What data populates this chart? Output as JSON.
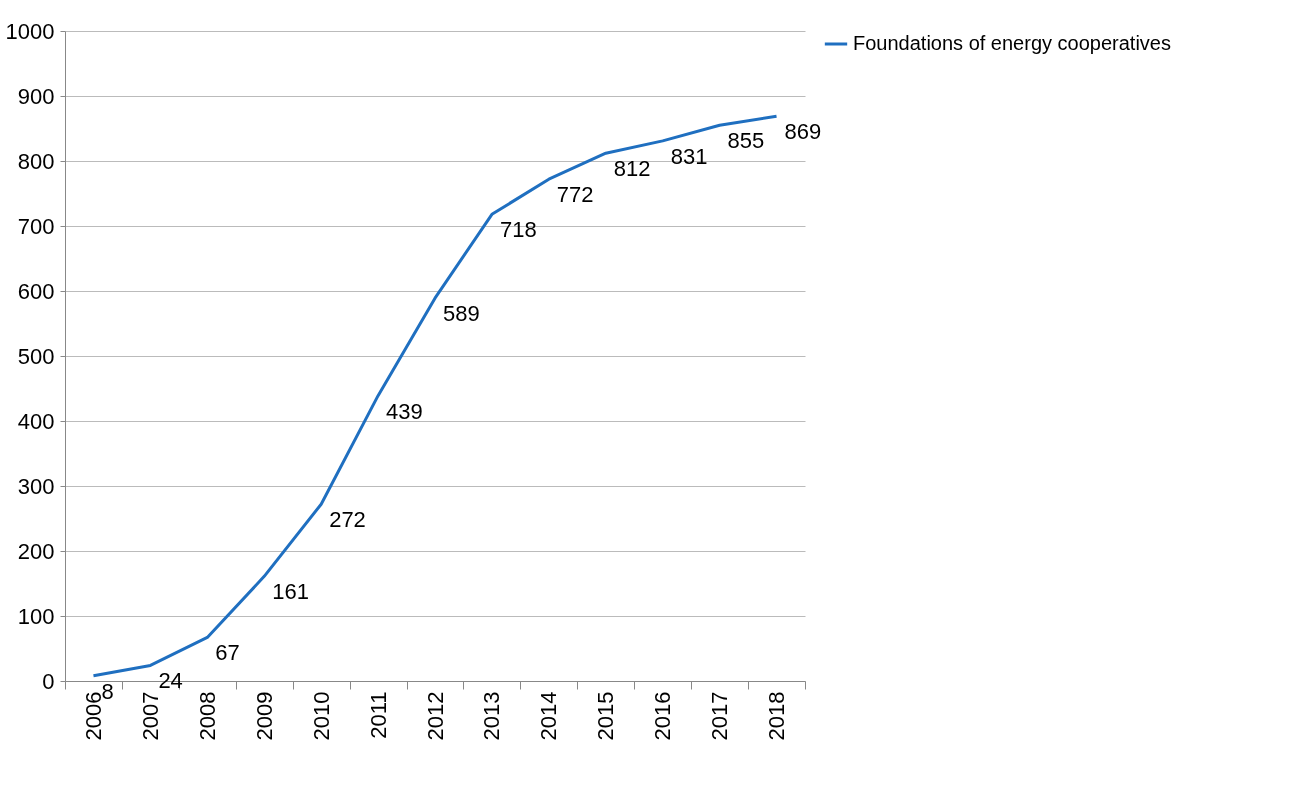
{
  "chart_data": {
    "type": "line",
    "categories": [
      "2006",
      "2007",
      "2008",
      "2009",
      "2010",
      "2011",
      "2012",
      "2013",
      "2014",
      "2015",
      "2016",
      "2017",
      "2018"
    ],
    "series": [
      {
        "name": "Foundations of energy cooperatives",
        "color": "#1f6fc0",
        "values": [
          8,
          24,
          67,
          161,
          272,
          439,
          589,
          718,
          772,
          812,
          831,
          855,
          869
        ]
      }
    ],
    "ylim": [
      0,
      1000
    ],
    "yticks": [
      0,
      100,
      200,
      300,
      400,
      500,
      600,
      700,
      800,
      900,
      1000
    ],
    "grid": "y",
    "legend": "right",
    "data_labels": true
  }
}
